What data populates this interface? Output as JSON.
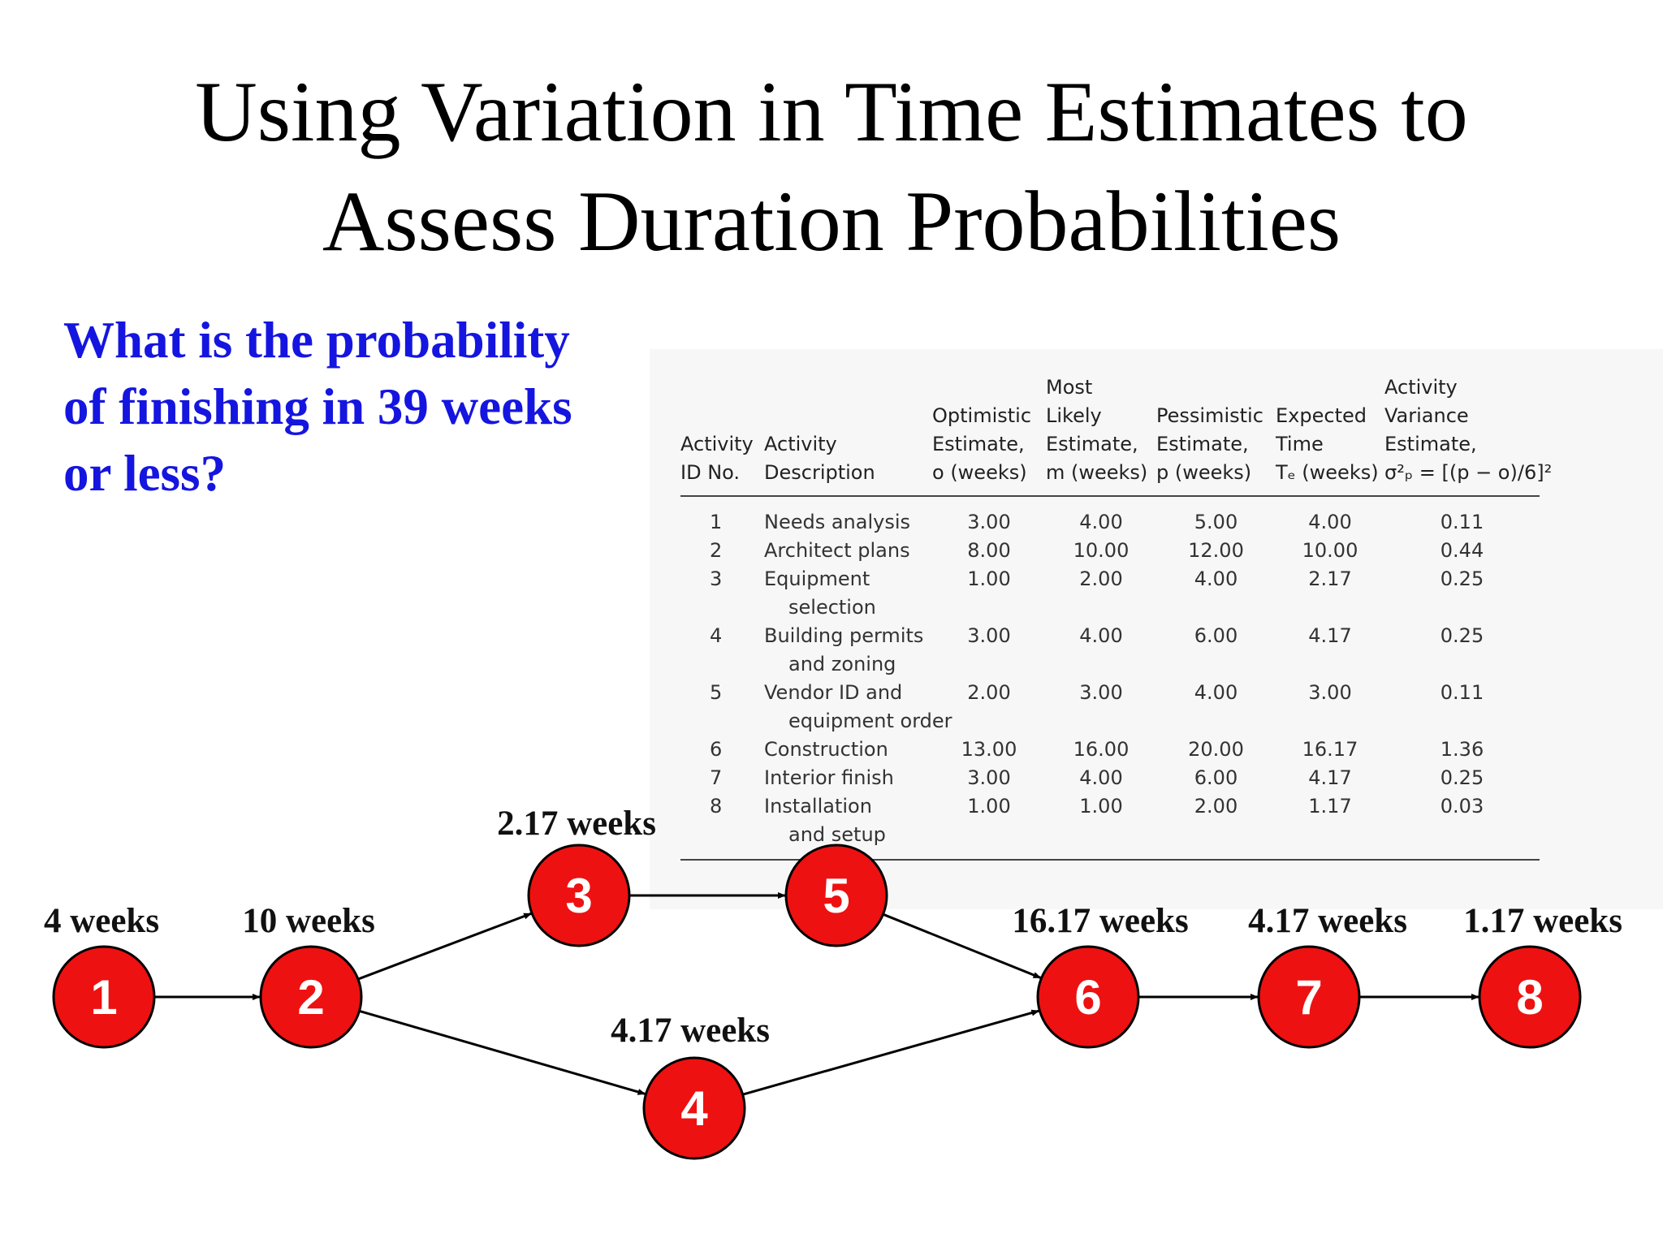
{
  "title": {
    "line1": "Using Variation in Time Estimates to",
    "line2": "Assess Duration Probabilities"
  },
  "question": {
    "line1": "What is the probability",
    "line2": "of finishing in 39 weeks",
    "line3": "or less?"
  },
  "colors": {
    "question_text": "#1515e0",
    "node_fill": "#ee1111",
    "node_outline": "#000000",
    "node_text": "#ffffff"
  },
  "table": {
    "headers": {
      "id": [
        "Activity",
        "ID No."
      ],
      "description": [
        "Activity",
        "Description"
      ],
      "optimistic": [
        "Optimistic",
        "Estimate,",
        "o (weeks)"
      ],
      "most_likely": [
        "Most",
        "Likely",
        "Estimate,",
        "m (weeks)"
      ],
      "pessimistic": [
        "Pessimistic",
        "Estimate,",
        "p (weeks)"
      ],
      "expected": [
        "Expected",
        "Time",
        "Tₑ (weeks)"
      ],
      "variance": [
        "Activity",
        "Variance",
        "Estimate,",
        "σ²ₚ = [(p − o)/6]²"
      ]
    },
    "rows": [
      {
        "id": "1",
        "desc": [
          "Needs analysis"
        ],
        "o": "3.00",
        "m": "4.00",
        "p": "5.00",
        "te": "4.00",
        "var": "0.11"
      },
      {
        "id": "2",
        "desc": [
          "Architect plans"
        ],
        "o": "8.00",
        "m": "10.00",
        "p": "12.00",
        "te": "10.00",
        "var": "0.44"
      },
      {
        "id": "3",
        "desc": [
          "Equipment",
          "selection"
        ],
        "o": "1.00",
        "m": "2.00",
        "p": "4.00",
        "te": "2.17",
        "var": "0.25"
      },
      {
        "id": "4",
        "desc": [
          "Building permits",
          "and zoning"
        ],
        "o": "3.00",
        "m": "4.00",
        "p": "6.00",
        "te": "4.17",
        "var": "0.25"
      },
      {
        "id": "5",
        "desc": [
          "Vendor ID and",
          "equipment order"
        ],
        "o": "2.00",
        "m": "3.00",
        "p": "4.00",
        "te": "3.00",
        "var": "0.11"
      },
      {
        "id": "6",
        "desc": [
          "Construction"
        ],
        "o": "13.00",
        "m": "16.00",
        "p": "20.00",
        "te": "16.17",
        "var": "1.36"
      },
      {
        "id": "7",
        "desc": [
          "Interior finish"
        ],
        "o": "3.00",
        "m": "4.00",
        "p": "6.00",
        "te": "4.17",
        "var": "0.25"
      },
      {
        "id": "8",
        "desc": [
          "Installation",
          "and setup"
        ],
        "o": "1.00",
        "m": "1.00",
        "p": "2.00",
        "te": "1.17",
        "var": "0.03"
      }
    ]
  },
  "network": {
    "nodes": [
      {
        "id": "1",
        "label": "4 weeks"
      },
      {
        "id": "2",
        "label": "10 weeks"
      },
      {
        "id": "3",
        "label": "2.17 weeks"
      },
      {
        "id": "4",
        "label": "4.17 weeks"
      },
      {
        "id": "5",
        "label": ""
      },
      {
        "id": "6",
        "label": "16.17 weeks"
      },
      {
        "id": "7",
        "label": "4.17 weeks"
      },
      {
        "id": "8",
        "label": "1.17 weeks"
      }
    ],
    "edges": [
      {
        "from": "1",
        "to": "2"
      },
      {
        "from": "2",
        "to": "3"
      },
      {
        "from": "2",
        "to": "4"
      },
      {
        "from": "3",
        "to": "5"
      },
      {
        "from": "5",
        "to": "6"
      },
      {
        "from": "4",
        "to": "6"
      },
      {
        "from": "6",
        "to": "7"
      },
      {
        "from": "7",
        "to": "8"
      }
    ]
  }
}
